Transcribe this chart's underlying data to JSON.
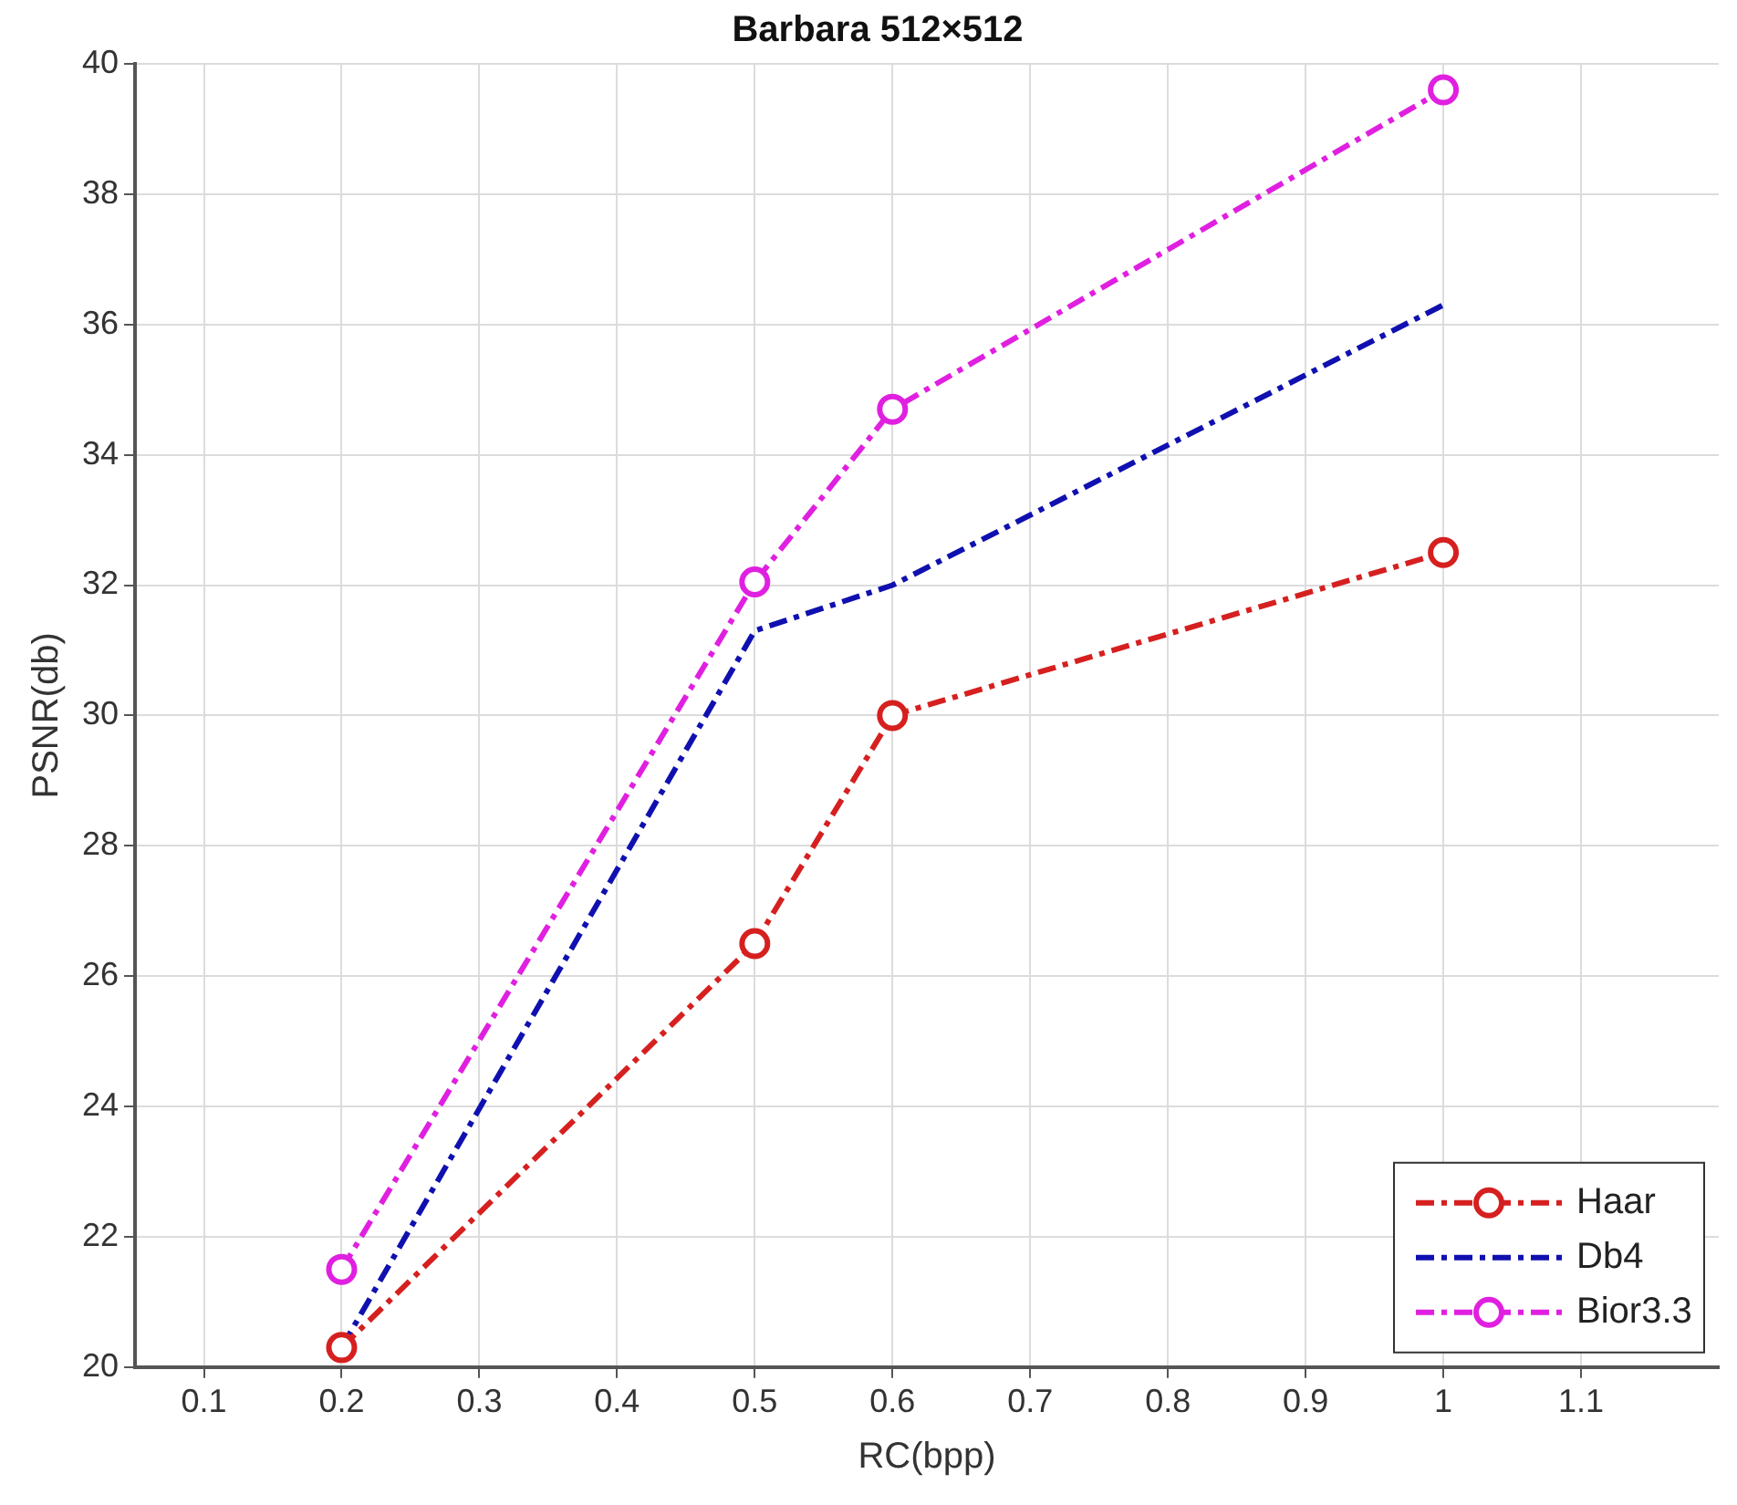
{
  "chart_data": {
    "type": "line",
    "title": "Barbara 512×512",
    "xlabel": "RC(bpp)",
    "ylabel": "PSNR(db)",
    "x": [
      0.2,
      0.5,
      0.6,
      1
    ],
    "series": [
      {
        "name": "Haar",
        "color": "#d62020",
        "values": [
          20.3,
          26.5,
          30,
          32.5
        ],
        "marker": "circle"
      },
      {
        "name": "Db4",
        "color": "#1010b0",
        "values": [
          20.3,
          31.3,
          32,
          36.3
        ],
        "marker": "none"
      },
      {
        "name": "Bior3.3",
        "color": "#e020e0",
        "values": [
          21.5,
          32.05,
          34.7,
          39.6
        ],
        "marker": "circle"
      }
    ],
    "xlim": [
      0.05,
      1.2
    ],
    "xticks": [
      0.1,
      0.2,
      0.3,
      0.4,
      0.5,
      0.6,
      0.7,
      0.8,
      0.9,
      1,
      1.1
    ],
    "ylim": [
      20,
      40
    ],
    "yticks": [
      20,
      22,
      24,
      26,
      28,
      30,
      32,
      34,
      36,
      38,
      40
    ],
    "grid": true,
    "legend": "bottom right",
    "line_style": "dashed"
  }
}
